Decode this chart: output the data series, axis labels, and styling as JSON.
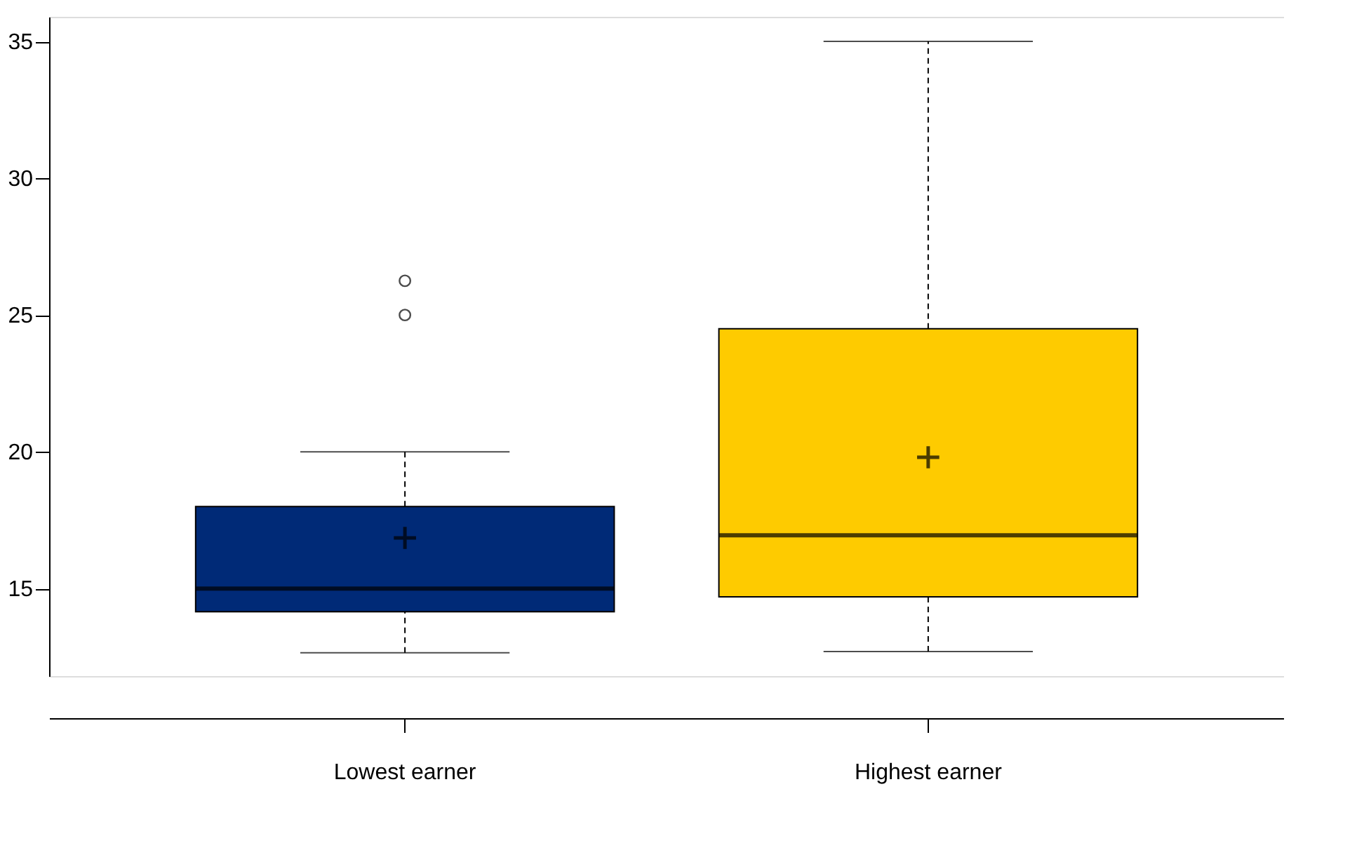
{
  "chart_data": {
    "type": "box",
    "categories": [
      "Lowest earner",
      "Highest earner"
    ],
    "colors": [
      "#002a77",
      "#fecb00"
    ],
    "boxes": [
      {
        "low": 12.65,
        "q1": 14.15,
        "median": 15.0,
        "q3": 18.0,
        "high": 20.0,
        "mean": 16.85,
        "outliers": [
          25.0,
          26.25
        ]
      },
      {
        "low": 12.7,
        "q1": 14.7,
        "median": 16.95,
        "q3": 24.5,
        "high": 35.0,
        "mean": 19.8
      }
    ],
    "ylim": [
      11.8,
      35.9
    ],
    "yticks": [
      15,
      20,
      25,
      30,
      35
    ],
    "grid": false,
    "marker": "cross"
  }
}
